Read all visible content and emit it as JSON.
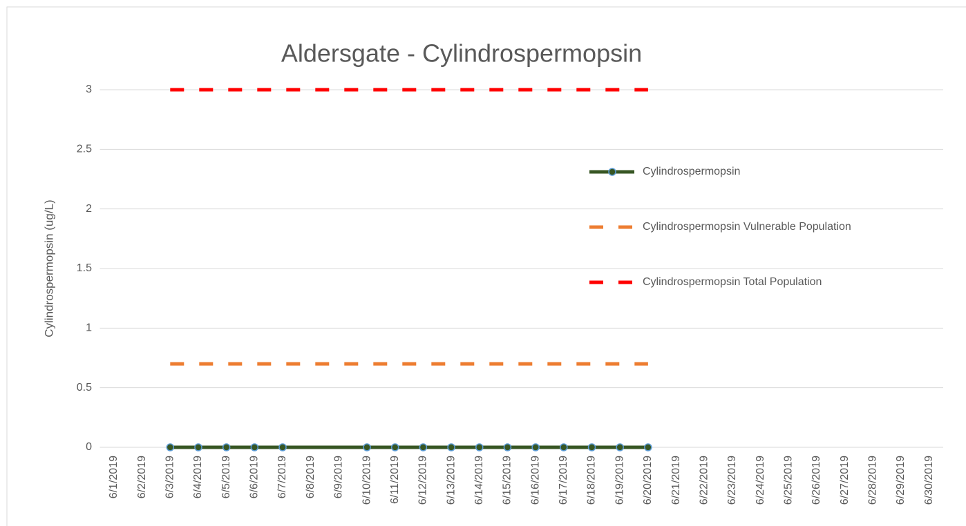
{
  "chart_data": {
    "type": "line",
    "title": "Aldersgate - Cylindrospermopsin",
    "y_label": "Cylindrospermopsin (ug/L)",
    "categories": [
      "6/1/2019",
      "6/2/2019",
      "6/3/2019",
      "6/4/2019",
      "6/5/2019",
      "6/6/2019",
      "6/7/2019",
      "6/8/2019",
      "6/9/2019",
      "6/10/2019",
      "6/11/2019",
      "6/12/2019",
      "6/13/2019",
      "6/14/2019",
      "6/15/2019",
      "6/16/2019",
      "6/17/2019",
      "6/18/2019",
      "6/19/2019",
      "6/20/2019",
      "6/21/2019",
      "6/22/2019",
      "6/23/2019",
      "6/24/2019",
      "6/25/2019",
      "6/26/2019",
      "6/27/2019",
      "6/28/2019",
      "6/29/2019",
      "6/30/2019"
    ],
    "series": [
      {
        "name": "Cylindrospermopsin",
        "color": "#375623",
        "marker_edge": "#5b9bd5",
        "dashed": false,
        "markers": true,
        "x": [
          "6/3/2019",
          "6/4/2019",
          "6/5/2019",
          "6/6/2019",
          "6/7/2019",
          "6/10/2019",
          "6/11/2019",
          "6/12/2019",
          "6/13/2019",
          "6/14/2019",
          "6/15/2019",
          "6/16/2019",
          "6/17/2019",
          "6/18/2019",
          "6/19/2019",
          "6/20/2019"
        ],
        "values": [
          0,
          0,
          0,
          0,
          0,
          0,
          0,
          0,
          0,
          0,
          0,
          0,
          0,
          0,
          0,
          0
        ]
      },
      {
        "name": "Cylindrospermopsin Vulnerable Population",
        "color": "#ed7d31",
        "dashed": true,
        "markers": false,
        "x": [
          "6/3/2019",
          "6/4/2019",
          "6/5/2019",
          "6/6/2019",
          "6/7/2019",
          "6/8/2019",
          "6/9/2019",
          "6/10/2019",
          "6/11/2019",
          "6/12/2019",
          "6/13/2019",
          "6/14/2019",
          "6/15/2019",
          "6/16/2019",
          "6/17/2019",
          "6/18/2019",
          "6/19/2019",
          "6/20/2019"
        ],
        "values": [
          0.7,
          0.7,
          0.7,
          0.7,
          0.7,
          0.7,
          0.7,
          0.7,
          0.7,
          0.7,
          0.7,
          0.7,
          0.7,
          0.7,
          0.7,
          0.7,
          0.7,
          0.7
        ]
      },
      {
        "name": "Cylindrospermopsin Total Population",
        "color": "#ff0000",
        "dashed": true,
        "markers": false,
        "x": [
          "6/3/2019",
          "6/4/2019",
          "6/5/2019",
          "6/6/2019",
          "6/7/2019",
          "6/8/2019",
          "6/9/2019",
          "6/10/2019",
          "6/11/2019",
          "6/12/2019",
          "6/13/2019",
          "6/14/2019",
          "6/15/2019",
          "6/16/2019",
          "6/17/2019",
          "6/18/2019",
          "6/19/2019",
          "6/20/2019"
        ],
        "values": [
          3,
          3,
          3,
          3,
          3,
          3,
          3,
          3,
          3,
          3,
          3,
          3,
          3,
          3,
          3,
          3,
          3,
          3
        ]
      }
    ],
    "ylim": [
      0,
      3
    ],
    "yticks": [
      0,
      0.5,
      1,
      1.5,
      2,
      2.5,
      3
    ],
    "grid": true,
    "legend": "right"
  }
}
